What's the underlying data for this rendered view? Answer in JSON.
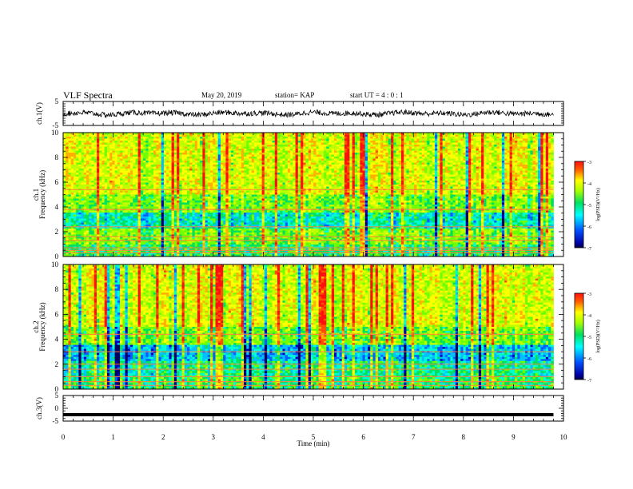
{
  "header": {
    "title": "VLF Spectra",
    "date": "May 20, 2019",
    "station": "station= KAP",
    "start_ut": "start  UT =   4 : 0  : 1"
  },
  "chart_data": [
    {
      "type": "line",
      "panel": "ch1-waveform",
      "ylabel": "ch.1(V)",
      "xlim": [
        0,
        10
      ],
      "ylim": [
        -5,
        5
      ],
      "yticks": [
        5,
        -5
      ],
      "description_values": {
        "mean": 0,
        "amplitude_range": [
          -1.6,
          1.6
        ]
      },
      "x_end": 9.8
    },
    {
      "type": "heatmap",
      "panel": "ch1-spectrogram",
      "ylabel": "ch.1\nFrequency (kHz)",
      "xlim": [
        0,
        10
      ],
      "ylim": [
        0,
        10
      ],
      "yticks": [
        0,
        2,
        4,
        6,
        8,
        10
      ],
      "colorbar": {
        "label": "log(PSD)(V²/Hz)",
        "range": [
          -7,
          -3
        ],
        "ticks": [
          -3,
          -4,
          -5,
          -6,
          -7
        ]
      },
      "bright_lines_khz": [
        0.3,
        0.5,
        0.7,
        1.3,
        1.6,
        2.4,
        3.8,
        5.4
      ]
    },
    {
      "type": "heatmap",
      "panel": "ch2-spectrogram",
      "ylabel": "ch.2\nFrequency (kHz)",
      "xlim": [
        0,
        10
      ],
      "ylim": [
        0,
        10
      ],
      "yticks": [
        0,
        2,
        4,
        6,
        8,
        10
      ],
      "colorbar": {
        "label": "log(PSD)(V²/Hz)",
        "range": [
          -7,
          -3
        ],
        "ticks": [
          -3,
          -4,
          -5,
          -6,
          -7
        ]
      },
      "bright_lines_khz": [
        0.3,
        0.6,
        1.0,
        1.6,
        2.0,
        3.0,
        4.4
      ]
    },
    {
      "type": "line",
      "panel": "ch3-waveform",
      "ylabel": "ch.3(V)",
      "xlabel": "Time (min)",
      "xlim": [
        0,
        10
      ],
      "ylim": [
        -5,
        5
      ],
      "yticks": [
        5,
        0,
        -5
      ],
      "xticks": [
        0,
        1,
        2,
        3,
        4,
        5,
        6,
        7,
        8,
        9,
        10
      ],
      "constant_value": -2.5,
      "x_end": 9.8
    }
  ]
}
